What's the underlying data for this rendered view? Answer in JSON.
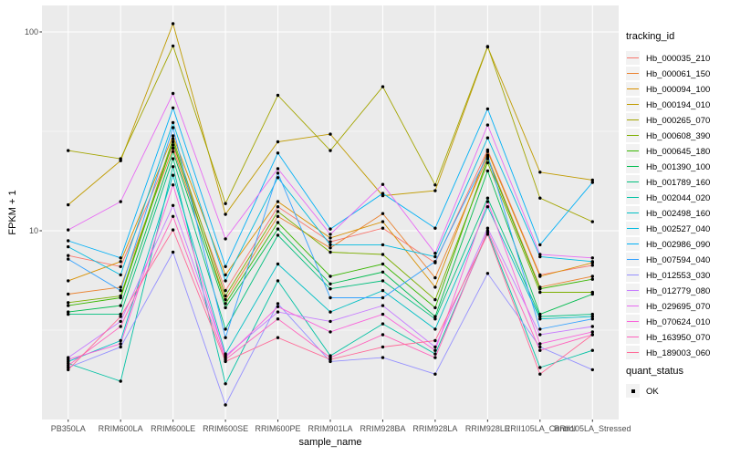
{
  "chart_data": {
    "type": "line",
    "title": "",
    "xlabel": "sample_name",
    "ylabel": "FPKM + 1",
    "y_scale": "log10",
    "ylim": [
      1.1,
      140
    ],
    "yticks": [
      10,
      100
    ],
    "grid": true,
    "panel_bg": "#EBEBEB",
    "grid_color": "#FFFFFF",
    "point_color": "#000000",
    "tick_label_color": "#4d4d4d",
    "categories": [
      "PB350LA",
      "RRIM600LA",
      "RRIM600LE",
      "RRIM600SE",
      "RRIM600PE",
      "RRIM901LA",
      "RRIM928BA",
      "RRIM928LA",
      "RRIM928LE",
      "RRII105LA_Control",
      "RRII105LA_Stressed"
    ],
    "legend": {
      "title": "tracking_id",
      "position": "right"
    },
    "legend2": {
      "title": "quant_status",
      "items": [
        {
          "label": "OK",
          "marker": "black-point"
        }
      ]
    },
    "series": [
      {
        "name": "Hb_000035_210",
        "color": "#F8766D",
        "values": [
          7.5,
          6.6,
          27,
          5,
          13.2,
          8.8,
          10.3,
          6.9,
          25.5,
          6,
          6.7
        ]
      },
      {
        "name": "Hb_000061_150",
        "color": "#EA8331",
        "values": [
          4.8,
          5.2,
          26,
          4.5,
          11.8,
          8.2,
          12.2,
          5.8,
          23.5,
          5.2,
          5.9
        ]
      },
      {
        "name": "Hb_000094_100",
        "color": "#D89000",
        "values": [
          5.6,
          7,
          30,
          6,
          14,
          9.2,
          11.1,
          5.2,
          25,
          5.9,
          6.9
        ]
      },
      {
        "name": "Hb_000194_010",
        "color": "#C09B00",
        "values": [
          13.5,
          22.5,
          110,
          12.1,
          28,
          30.6,
          15,
          15.9,
          84,
          19.7,
          18
        ]
      },
      {
        "name": "Hb_000265_070",
        "color": "#A3A500",
        "values": [
          25.3,
          23,
          85,
          13.7,
          48,
          25.3,
          53,
          17,
          84.5,
          14.6,
          11.1
        ]
      },
      {
        "name": "Hb_000608_390",
        "color": "#7CAE00",
        "values": [
          4.35,
          4.7,
          29,
          4.7,
          12.5,
          7.8,
          7.6,
          4.5,
          22,
          4.9,
          4.9
        ]
      },
      {
        "name": "Hb_000645_180",
        "color": "#39B600",
        "values": [
          4.2,
          4.6,
          28,
          4.3,
          11,
          5.9,
          6.8,
          4.1,
          23,
          5.1,
          5.7
        ]
      },
      {
        "name": "Hb_001390_100",
        "color": "#00BB4E",
        "values": [
          3.9,
          4.2,
          25,
          4.1,
          10.2,
          5.4,
          6.2,
          3.7,
          20,
          3.8,
          4.8
        ]
      },
      {
        "name": "Hb_001789_160",
        "color": "#00BF7D",
        "values": [
          3.8,
          3.8,
          23,
          3.2,
          9.5,
          5.1,
          5.6,
          3.6,
          14.6,
          3.7,
          3.8
        ]
      },
      {
        "name": "Hb_002044_020",
        "color": "#00C1A3",
        "values": [
          2.15,
          1.75,
          21,
          1.7,
          5.6,
          2.35,
          3.4,
          2.4,
          9.8,
          2.05,
          2.5
        ]
      },
      {
        "name": "Hb_002498_160",
        "color": "#00BFC4",
        "values": [
          2.2,
          2.8,
          19,
          2.4,
          6.8,
          3.9,
          5,
          3.2,
          13.2,
          3.6,
          3.7
        ]
      },
      {
        "name": "Hb_002527_040",
        "color": "#00BAE0",
        "values": [
          8.3,
          6,
          35,
          5.6,
          18.5,
          8.5,
          8.5,
          7.4,
          29.3,
          7.4,
          7
        ]
      },
      {
        "name": "Hb_002986_090",
        "color": "#00B0F6",
        "values": [
          8.9,
          7.3,
          41.5,
          6.6,
          24.6,
          10.2,
          15.4,
          10.3,
          41,
          8.5,
          17.5
        ]
      },
      {
        "name": "Hb_007594_040",
        "color": "#35A2FF",
        "values": [
          7.2,
          5,
          33,
          2.9,
          19.5,
          4.6,
          4.6,
          7,
          24,
          3.2,
          3.6
        ]
      },
      {
        "name": "Hb_012553_030",
        "color": "#9590FF",
        "values": [
          2.05,
          2.6,
          7.8,
          1.33,
          4.3,
          2.2,
          2.3,
          1.9,
          6.1,
          2.6,
          2
        ]
      },
      {
        "name": "Hb_012779_080",
        "color": "#C77CFF",
        "values": [
          2.3,
          3.5,
          13.4,
          2.35,
          3.9,
          3.5,
          4.2,
          2.6,
          10.3,
          3,
          3.3
        ]
      },
      {
        "name": "Hb_029695_070",
        "color": "#E76BF3",
        "values": [
          10.1,
          14,
          49,
          9.1,
          20.5,
          9.6,
          17.1,
          7.7,
          34,
          7.6,
          7.3
        ]
      },
      {
        "name": "Hb_070624_010",
        "color": "#FA62DB",
        "values": [
          2.25,
          2.7,
          17,
          2.3,
          4.15,
          3.1,
          3.8,
          2.5,
          14,
          2.7,
          3.1
        ]
      },
      {
        "name": "Hb_163950_070",
        "color": "#FF62BC",
        "values": [
          2.1,
          3.3,
          11.8,
          2.25,
          3.6,
          2.3,
          3,
          2.3,
          10,
          2.5,
          3
        ]
      },
      {
        "name": "Hb_189003_060",
        "color": "#FF6A98",
        "values": [
          2,
          3.7,
          10.1,
          2.2,
          2.9,
          2.25,
          2.6,
          2.8,
          9.6,
          1.9,
          3
        ]
      }
    ]
  }
}
